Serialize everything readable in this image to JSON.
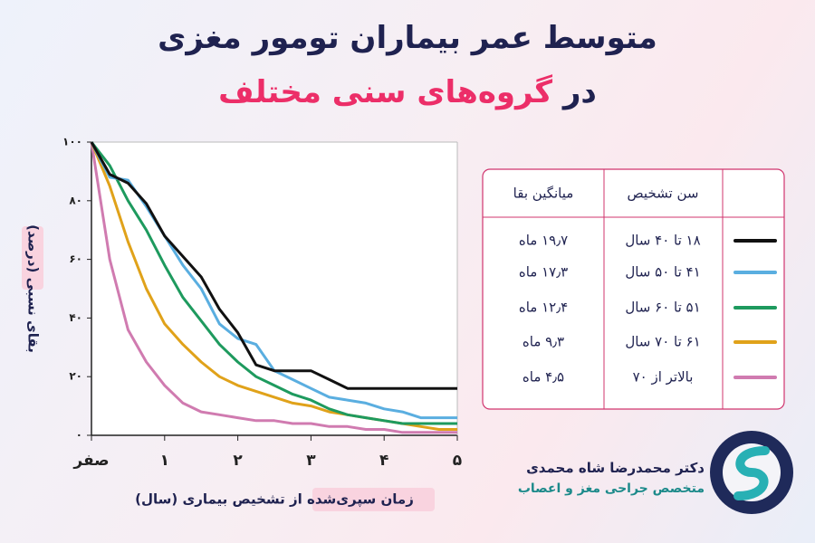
{
  "title_line1": "متوسط عمر بیماران تومور مغزی",
  "title_line2_prefix": "در",
  "title_line2_highlight": "گروه‌های سنی مختلف",
  "chart_data": {
    "type": "line",
    "y_label": "بقای نسبی (درصد)",
    "x_label": "زمان سپری‌شده از تشخیص بیماری (سال)",
    "x": [
      0,
      0.25,
      0.5,
      0.75,
      1,
      1.25,
      1.5,
      1.75,
      2,
      2.25,
      2.5,
      2.75,
      3,
      3.25,
      3.5,
      3.75,
      4,
      4.25,
      4.5,
      4.75,
      5
    ],
    "xlim": [
      0,
      5
    ],
    "ylim": [
      0,
      100
    ],
    "xticks": [
      {
        "value": 0,
        "label": "صفر"
      },
      {
        "value": 1,
        "label": "۱"
      },
      {
        "value": 2,
        "label": "۲"
      },
      {
        "value": 3,
        "label": "۳"
      },
      {
        "value": 4,
        "label": "۴"
      },
      {
        "value": 5,
        "label": "۵"
      }
    ],
    "yticks": [
      {
        "value": 0,
        "label": "۰"
      },
      {
        "value": 20,
        "label": "۲۰"
      },
      {
        "value": 40,
        "label": "۴۰"
      },
      {
        "value": 60,
        "label": "۶۰"
      },
      {
        "value": 80,
        "label": "۸۰"
      },
      {
        "value": 100,
        "label": "۱۰۰"
      }
    ],
    "grid": false,
    "series": [
      {
        "name": "۱۸ تا ۴۰ سال",
        "color": "#111111",
        "values": [
          100,
          89,
          86,
          79,
          68,
          61,
          54,
          43,
          35,
          24,
          22,
          22,
          22,
          19,
          16,
          16,
          16,
          16,
          16,
          16,
          16
        ]
      },
      {
        "name": "۴۱ تا ۵۰ سال",
        "color": "#5aaee0",
        "values": [
          100,
          88,
          87,
          78,
          68,
          58,
          50,
          38,
          33,
          31,
          22,
          19,
          16,
          13,
          12,
          11,
          9,
          8,
          6,
          6,
          6
        ]
      },
      {
        "name": "۵۱ تا ۶۰ سال",
        "color": "#1e9a5e",
        "values": [
          100,
          92,
          80,
          70,
          58,
          47,
          39,
          31,
          25,
          20,
          17,
          14,
          12,
          9,
          7,
          6,
          5,
          4,
          4,
          4,
          4
        ]
      },
      {
        "name": "۶۱ تا ۷۰ سال",
        "color": "#e0a21a",
        "values": [
          100,
          85,
          66,
          50,
          38,
          31,
          25,
          20,
          17,
          15,
          13,
          11,
          10,
          8,
          7,
          6,
          5,
          4,
          3,
          2,
          2
        ]
      },
      {
        "name": "بالاتر از ۷۰",
        "color": "#d07bb0",
        "values": [
          100,
          60,
          36,
          25,
          17,
          11,
          8,
          7,
          6,
          5,
          5,
          4,
          4,
          3,
          3,
          2,
          2,
          1,
          1,
          1,
          1
        ]
      }
    ]
  },
  "legend_table": {
    "age_header": "سن تشخیص",
    "median_header": "میانگین بقا",
    "medians": [
      "۱۹٫۷ ماه",
      "۱۷٫۳ ماه",
      "۱۲٫۴ ماه",
      "۹٫۳ ماه",
      "۴٫۵ ماه"
    ]
  },
  "footer": {
    "name": "دکتر محمدرضا شاه محمدی",
    "role": "متخصص جراحی مغز و اعصاب"
  }
}
